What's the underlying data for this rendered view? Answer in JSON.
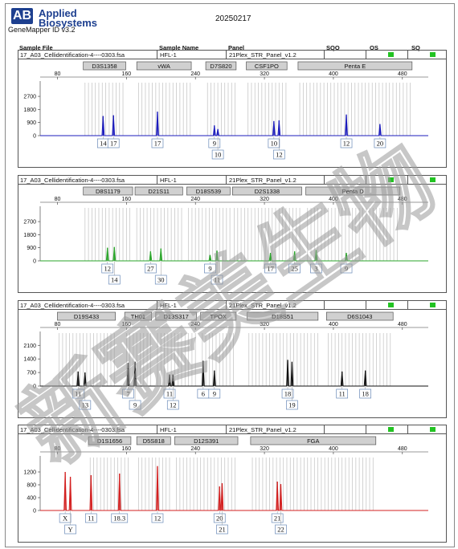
{
  "header": {
    "logo_mark": "AB",
    "logo_line1": "Applied",
    "logo_line2": "Biosystems",
    "software": "GeneMapper ID v3.2",
    "date": "20250217"
  },
  "columns": [
    "Sample File",
    "Sample Name",
    "Panel",
    "SQO",
    "OS",
    "SQ"
  ],
  "watermark_text": "新赛美生物",
  "chart_data": [
    {
      "type": "line",
      "sample_file": "17_A03_Cellidentification-4----0303.fsa",
      "sample_name": "HFL-1",
      "panel": "21Plex_STR_Panel_v1.2",
      "color": "#1d1dbd",
      "x_ticks": [
        80,
        160,
        240,
        320,
        400,
        480
      ],
      "xlim": [
        60,
        510
      ],
      "y_ticks": [
        0,
        900,
        1800,
        2700
      ],
      "ylim": [
        0,
        3200
      ],
      "loci": [
        {
          "name": "D3S1358",
          "start": 110,
          "end": 162
        },
        {
          "name": "vWA",
          "start": 172,
          "end": 238
        },
        {
          "name": "D7S820",
          "start": 252,
          "end": 290
        },
        {
          "name": "CSF1PO",
          "start": 299,
          "end": 349
        },
        {
          "name": "Penta E",
          "start": 359,
          "end": 494
        }
      ],
      "peaks": [
        {
          "x": 133,
          "height": 1350,
          "label": "14",
          "row": 0
        },
        {
          "x": 145,
          "height": 1400,
          "label": "17",
          "row": 0
        },
        {
          "x": 196,
          "height": 1650,
          "label": "17",
          "row": 0
        },
        {
          "x": 262,
          "height": 700,
          "label": "9",
          "row": 0
        },
        {
          "x": 266,
          "height": 450,
          "label": "10",
          "row": 1
        },
        {
          "x": 331,
          "height": 1000,
          "label": "10",
          "row": 0
        },
        {
          "x": 337,
          "height": 1050,
          "label": "12",
          "row": 1
        },
        {
          "x": 415,
          "height": 1450,
          "label": "12",
          "row": 0
        },
        {
          "x": 454,
          "height": 800,
          "label": "20",
          "row": 0
        }
      ]
    },
    {
      "type": "line",
      "sample_file": "17_A03_Cellidentification-4----0303.fsa",
      "sample_name": "HFL-1",
      "panel": "21Plex_STR_Panel_v1.2",
      "color": "#2aa52a",
      "x_ticks": [
        80,
        160,
        240,
        320,
        400,
        480
      ],
      "xlim": [
        60,
        510
      ],
      "y_ticks": [
        0,
        900,
        1800,
        2700
      ],
      "ylim": [
        0,
        3200
      ],
      "loci": [
        {
          "name": "D8S1179",
          "start": 110,
          "end": 170
        },
        {
          "name": "D21S11",
          "start": 170,
          "end": 228
        },
        {
          "name": "D18S539",
          "start": 230,
          "end": 283
        },
        {
          "name": "D2S1338",
          "start": 283,
          "end": 366
        },
        {
          "name": "Penta D",
          "start": 368,
          "end": 480
        }
      ],
      "peaks": [
        {
          "x": 138,
          "height": 900,
          "label": "12",
          "row": 0
        },
        {
          "x": 146,
          "height": 950,
          "label": "14",
          "row": 1
        },
        {
          "x": 188,
          "height": 650,
          "label": "27",
          "row": 0
        },
        {
          "x": 200,
          "height": 850,
          "label": "30",
          "row": 1
        },
        {
          "x": 257,
          "height": 400,
          "label": "9",
          "row": 0
        },
        {
          "x": 265,
          "height": 700,
          "label": "11",
          "row": 1
        },
        {
          "x": 327,
          "height": 550,
          "label": "17",
          "row": 0
        },
        {
          "x": 355,
          "height": 650,
          "label": "25",
          "row": 0
        },
        {
          "x": 380,
          "height": 750,
          "label": "3",
          "row": 0
        },
        {
          "x": 415,
          "height": 550,
          "label": "9",
          "row": 0
        }
      ]
    },
    {
      "type": "line",
      "sample_file": "17_A03_Cellidentification-4----0303.fsa",
      "sample_name": "HFL-1",
      "panel": "21Plex_STR_Panel_v1.2",
      "color": "#111111",
      "x_ticks": [
        80,
        160,
        240,
        320,
        400,
        480
      ],
      "xlim": [
        60,
        510
      ],
      "y_ticks": [
        0,
        700,
        1400,
        2100
      ],
      "ylim": [
        0,
        2400
      ],
      "loci": [
        {
          "name": "D19S433",
          "start": 80,
          "end": 150
        },
        {
          "name": "TH01",
          "start": 158,
          "end": 192
        },
        {
          "name": "D13S317",
          "start": 194,
          "end": 244
        },
        {
          "name": "TPOX",
          "start": 246,
          "end": 290
        },
        {
          "name": "D18S51",
          "start": 300,
          "end": 385
        },
        {
          "name": "D6S1043",
          "start": 392,
          "end": 472
        }
      ],
      "peaks": [
        {
          "x": 104,
          "height": 750,
          "label": "11",
          "row": 0
        },
        {
          "x": 112,
          "height": 700,
          "label": "13",
          "row": 1
        },
        {
          "x": 162,
          "height": 1200,
          "label": "7",
          "row": 0
        },
        {
          "x": 170,
          "height": 1250,
          "label": "9",
          "row": 1
        },
        {
          "x": 210,
          "height": 600,
          "label": "11",
          "row": 0
        },
        {
          "x": 214,
          "height": 600,
          "label": "12",
          "row": 1
        },
        {
          "x": 249,
          "height": 1300,
          "label": "6",
          "row": 0
        },
        {
          "x": 262,
          "height": 800,
          "label": "9",
          "row": 0
        },
        {
          "x": 347,
          "height": 1350,
          "label": "18",
          "row": 0
        },
        {
          "x": 352,
          "height": 1250,
          "label": "19",
          "row": 1
        },
        {
          "x": 410,
          "height": 750,
          "label": "11",
          "row": 0
        },
        {
          "x": 437,
          "height": 800,
          "label": "18",
          "row": 0
        }
      ]
    },
    {
      "type": "line",
      "sample_file": "17_A03_Cellidentification-4----0303.fsa",
      "sample_name": "HFL-1",
      "panel": "21Plex_STR_Panel_v1.2",
      "color": "#d32020",
      "x_ticks": [
        80,
        160,
        240,
        320,
        400,
        480
      ],
      "xlim": [
        60,
        510
      ],
      "y_ticks": [
        0,
        400,
        800,
        1200
      ],
      "ylim": [
        0,
        1450
      ],
      "loci": [
        {
          "name": "D1S1656",
          "start": 116,
          "end": 168
        },
        {
          "name": "D5S818",
          "start": 172,
          "end": 214
        },
        {
          "name": "D12S391",
          "start": 216,
          "end": 292
        },
        {
          "name": "FGA",
          "start": 304,
          "end": 452
        }
      ],
      "peaks": [
        {
          "x": 89,
          "height": 1200,
          "label": "X",
          "row": 0
        },
        {
          "x": 95,
          "height": 1050,
          "label": "Y",
          "row": 1
        },
        {
          "x": 119,
          "height": 1100,
          "label": "11",
          "row": 0
        },
        {
          "x": 152,
          "height": 1150,
          "label": "18.3",
          "row": 0
        },
        {
          "x": 196,
          "height": 1380,
          "label": "12",
          "row": 0
        },
        {
          "x": 268,
          "height": 750,
          "label": "20",
          "row": 0
        },
        {
          "x": 271,
          "height": 850,
          "label": "21",
          "row": 1
        },
        {
          "x": 335,
          "height": 900,
          "label": "21",
          "row": 0
        },
        {
          "x": 339,
          "height": 820,
          "label": "22",
          "row": 1
        }
      ]
    }
  ]
}
